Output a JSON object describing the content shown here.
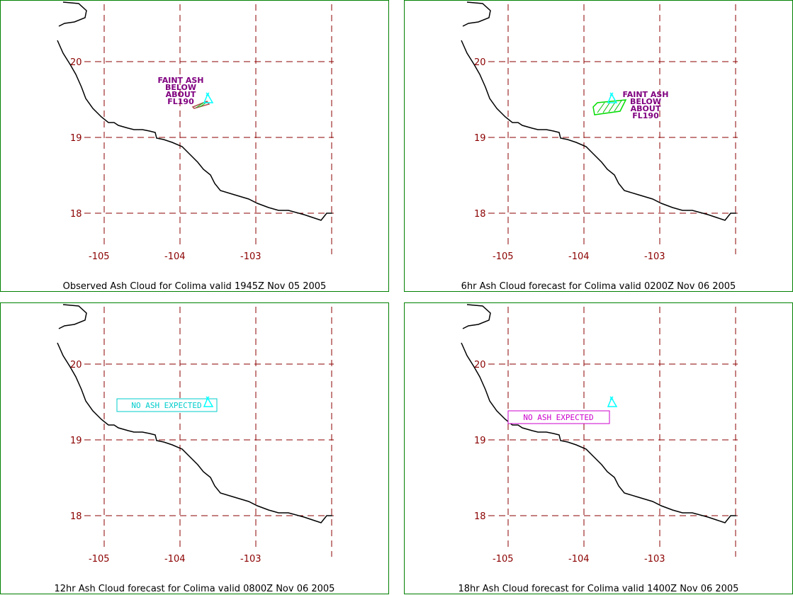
{
  "colors": {
    "border": "#008000",
    "grid": "#8b0000",
    "coast": "#000000",
    "ash_label": "#800080",
    "volcano": "#00ffff",
    "cloud": "#00dd00",
    "obs_cloud": "#b05050",
    "no_ash_12": "#00cccc",
    "no_ash_18": "#cc00cc"
  },
  "axes": {
    "lat_labels": [
      "20",
      "19",
      "18"
    ],
    "lon_labels": [
      "-105",
      "-104",
      "-103"
    ]
  },
  "panels": [
    {
      "caption": "Observed Ash Cloud for Colima valid 1945Z Nov 05 2005",
      "ash_label": [
        "FAINT ASH",
        "BELOW",
        "ABOUT",
        "FL190"
      ],
      "volcano_icon": "volcano-icon"
    },
    {
      "caption": "6hr Ash Cloud forecast for Colima valid 0200Z Nov 06 2005",
      "ash_label": [
        "FAINT ASH",
        "BELOW",
        "ABOUT",
        "FL190"
      ],
      "volcano_icon": "volcano-icon"
    },
    {
      "caption": "12hr Ash Cloud forecast for Colima valid 0800Z Nov 06 2005",
      "no_ash": "NO ASH EXPECTED",
      "volcano_icon": "volcano-icon"
    },
    {
      "caption": "18hr Ash Cloud forecast for Colima valid 1400Z Nov 06 2005",
      "no_ash": "NO ASH EXPECTED",
      "volcano_icon": "volcano-icon"
    }
  ]
}
